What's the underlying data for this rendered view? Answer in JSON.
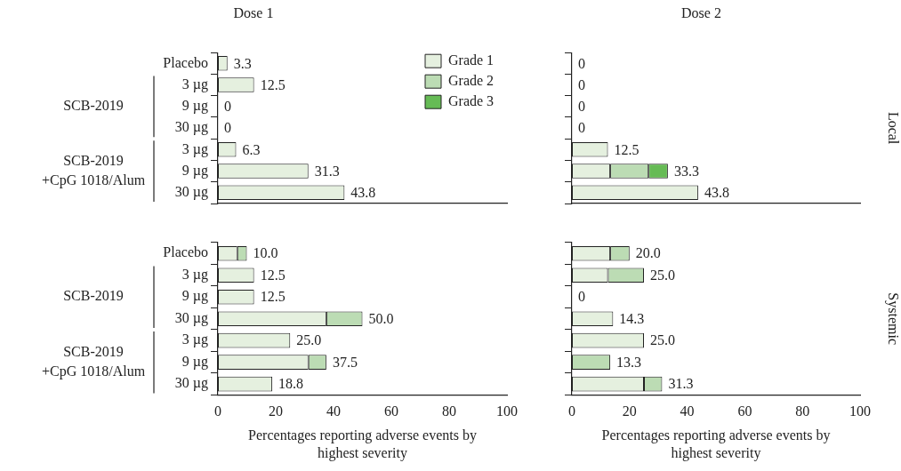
{
  "chart_data": [
    {
      "type": "bar",
      "orientation": "horizontal",
      "stacked": true,
      "title": "Dose 1",
      "categories": [
        "Placebo",
        "3 µg",
        "9 µg",
        "30 µg",
        "3 µg",
        "9 µg",
        "30 µg"
      ],
      "series": [
        {
          "name": "Grade 1",
          "color": "#e5f0df",
          "values": [
            3.3,
            12.5,
            0,
            0,
            6.3,
            31.3,
            43.8
          ]
        },
        {
          "name": "Grade 2",
          "color": "#bcdcb4",
          "values": [
            0,
            0,
            0,
            0,
            0,
            0,
            0
          ]
        },
        {
          "name": "Grade 3",
          "color": "#66bb55",
          "values": [
            0,
            0,
            0,
            0,
            0,
            0,
            0
          ]
        }
      ],
      "totals": [
        "3.3",
        "12.5",
        "0",
        "0",
        "6.3",
        "31.3",
        "43.8"
      ],
      "xlim": [
        0,
        100
      ],
      "xticks": [
        0,
        20,
        40,
        60,
        80,
        100
      ],
      "tick_labels": "y",
      "legend": "top right",
      "annotations": [
        "SCB-2019",
        "SCB-2019 +CpG 1018/Alum"
      ]
    },
    {
      "type": "bar",
      "orientation": "horizontal",
      "stacked": true,
      "title": "Dose 2",
      "y2label": "Local",
      "categories": [
        null,
        null,
        null,
        null,
        null,
        null,
        null
      ],
      "series": [
        {
          "color": "#e5f0df",
          "values": [
            0,
            0,
            0,
            0,
            12.5,
            13.3,
            43.8
          ]
        },
        {
          "color": "#bcdcb4",
          "values": [
            0,
            0,
            0,
            0,
            0,
            13.3,
            0
          ]
        },
        {
          "color": "#66bb55",
          "values": [
            0,
            0,
            0,
            0,
            0,
            6.7,
            0
          ]
        }
      ],
      "totals": [
        "0",
        "0",
        "0",
        "0",
        "12.5",
        "33.3",
        "43.8"
      ],
      "xlim": [
        0,
        100
      ],
      "xticks": [
        0,
        20,
        40,
        60,
        80,
        100
      ],
      "tick_labels": false
    },
    {
      "type": "bar",
      "orientation": "horizontal",
      "stacked": true,
      "xlabel": "Percentages reporting adverse events by highest severity",
      "categories": [
        "Placebo",
        "3 µg",
        "9 µg",
        "30 µg",
        "3 µg",
        "9 µg",
        "30 µg"
      ],
      "series": [
        {
          "color": "#e5f0df",
          "values": [
            6.7,
            12.5,
            12.5,
            37.5,
            25.0,
            31.3,
            18.8
          ]
        },
        {
          "color": "#bcdcb4",
          "values": [
            3.3,
            0,
            0,
            12.5,
            0,
            6.2,
            0
          ]
        },
        {
          "color": "#66bb55",
          "values": [
            0,
            0,
            0,
            0,
            0,
            0,
            0
          ]
        }
      ],
      "totals": [
        "10.0",
        "12.5",
        "12.5",
        "50.0",
        "25.0",
        "37.5",
        "18.8"
      ],
      "xlim": [
        0,
        100
      ],
      "xticks": [
        0,
        20,
        40,
        60,
        80,
        100
      ],
      "annotations": [
        "SCB-2019",
        "SCB-2019 +CpG 1018/Alum"
      ]
    },
    {
      "type": "bar",
      "orientation": "horizontal",
      "stacked": true,
      "xlabel": "Percentages reporting adverse events by highest severity",
      "y2label": "Systemic",
      "categories": [
        null,
        null,
        null,
        null,
        null,
        null,
        null
      ],
      "series": [
        {
          "color": "#e5f0df",
          "values": [
            13.3,
            12.5,
            0,
            14.3,
            25.0,
            0,
            25.0
          ]
        },
        {
          "color": "#bcdcb4",
          "values": [
            6.7,
            12.5,
            0,
            0,
            0,
            13.3,
            6.3
          ]
        },
        {
          "color": "#66bb55",
          "values": [
            0,
            0,
            0,
            0,
            0,
            0,
            0
          ]
        }
      ],
      "totals": [
        "20.0",
        "25.0",
        "0",
        "14.3",
        "25.0",
        "13.3",
        "31.3"
      ],
      "xlim": [
        0,
        100
      ],
      "xticks": [
        0,
        20,
        40,
        60,
        80,
        100
      ],
      "tick_labels": "x"
    }
  ]
}
